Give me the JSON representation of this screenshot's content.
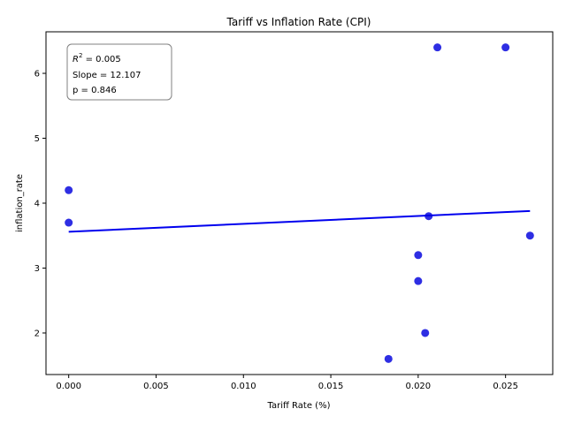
{
  "chart_data": {
    "type": "scatter",
    "title": "Tariff vs Inflation Rate (CPI)",
    "xlabel": "Tariff Rate (%)",
    "ylabel": "inflation_rate",
    "xlim": [
      -0.0013,
      0.0277
    ],
    "ylim": [
      1.36,
      6.64
    ],
    "xticks": [
      0.0,
      0.005,
      0.01,
      0.015,
      0.02,
      0.025
    ],
    "xtick_labels": [
      "0.000",
      "0.005",
      "0.010",
      "0.015",
      "0.020",
      "0.025"
    ],
    "yticks": [
      2,
      3,
      4,
      5,
      6
    ],
    "ytick_labels": [
      "2",
      "3",
      "4",
      "5",
      "6"
    ],
    "points": [
      {
        "x": 0.0,
        "y": 4.2
      },
      {
        "x": 0.0,
        "y": 3.7
      },
      {
        "x": 0.0183,
        "y": 1.6
      },
      {
        "x": 0.02,
        "y": 3.2
      },
      {
        "x": 0.02,
        "y": 2.8
      },
      {
        "x": 0.0204,
        "y": 2.0
      },
      {
        "x": 0.0206,
        "y": 3.8
      },
      {
        "x": 0.0211,
        "y": 6.4
      },
      {
        "x": 0.025,
        "y": 6.4
      },
      {
        "x": 0.0264,
        "y": 3.5
      }
    ],
    "point_color": "#0000dd",
    "regression": {
      "x": [
        0.0,
        0.0264
      ],
      "y": [
        3.56,
        3.88
      ],
      "color": "#0000ee"
    },
    "annotation": {
      "r2_prefix": "R",
      "r2_exp": "2",
      "r2_value": " = 0.005",
      "slope": "Slope = 12.107",
      "p": "p = 0.846"
    },
    "grid": false
  }
}
